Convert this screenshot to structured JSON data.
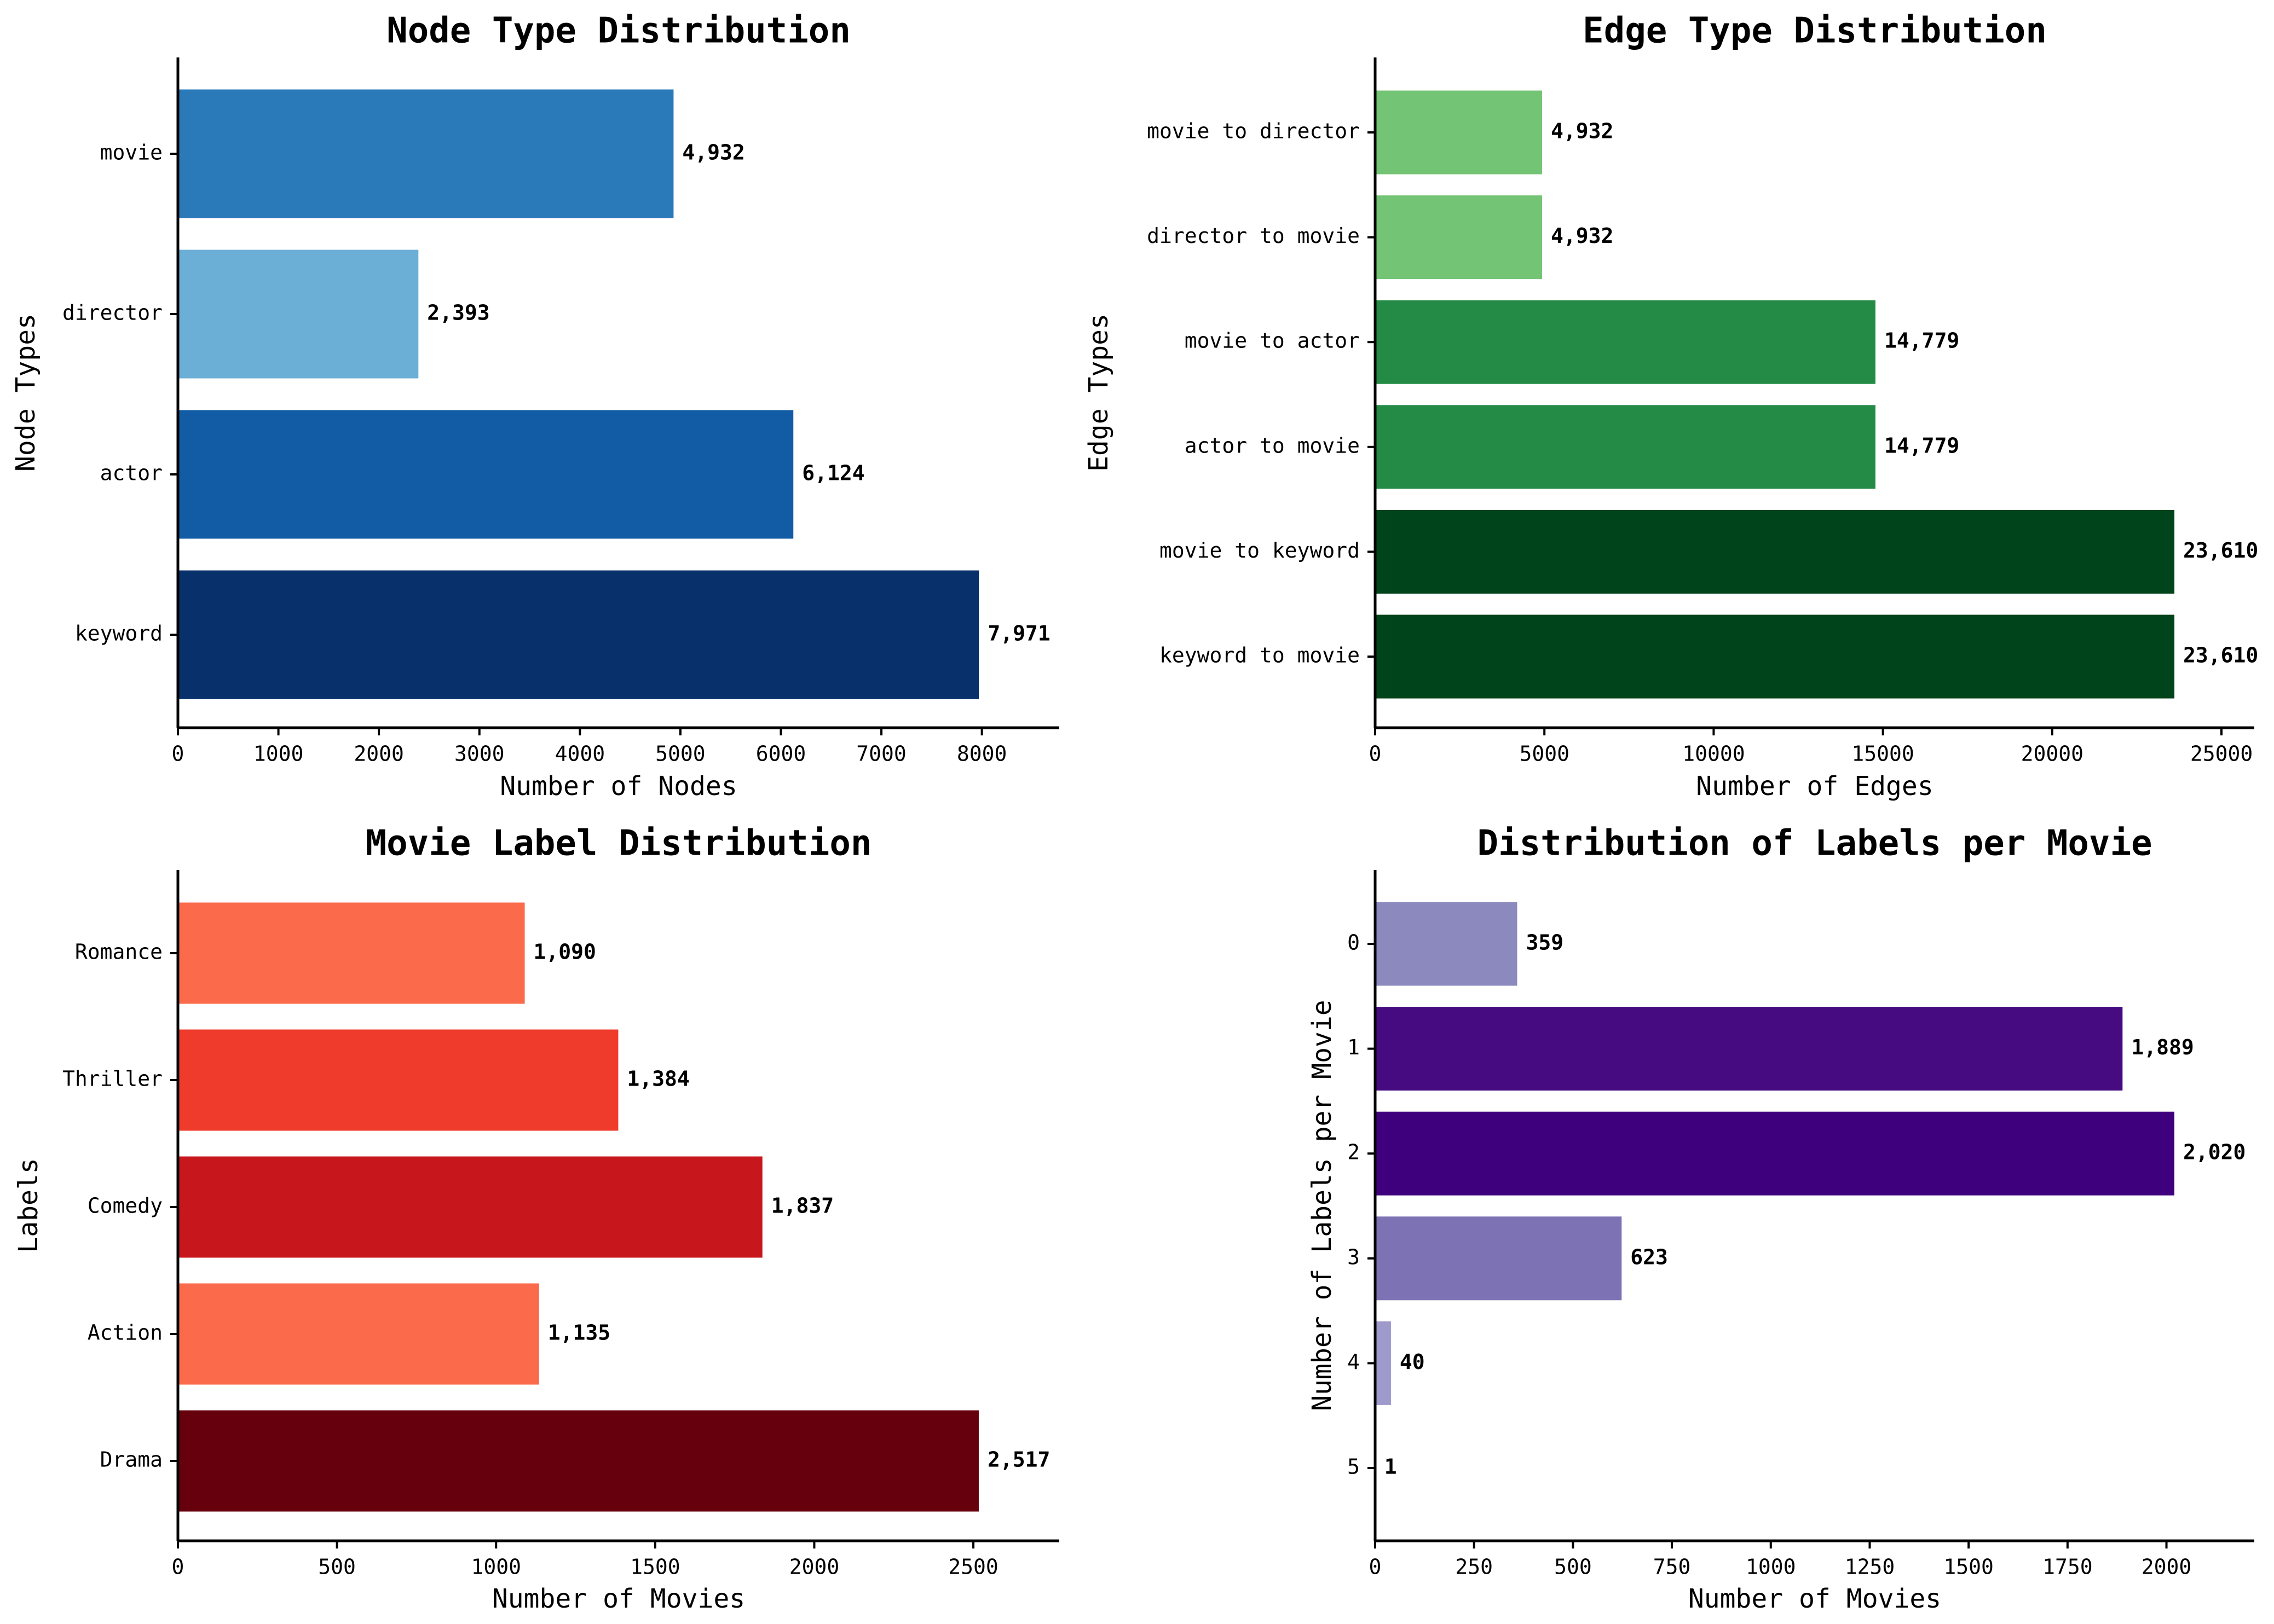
{
  "chart_data": [
    {
      "type": "bar",
      "orientation": "horizontal",
      "title": "Node Type Distribution",
      "xlabel": "Number of Nodes",
      "ylabel": "Node Types",
      "categories": [
        "movie",
        "director",
        "actor",
        "keyword"
      ],
      "values": [
        4932,
        2393,
        6124,
        7971
      ],
      "value_labels": [
        "4,932",
        "2,393",
        "6,124",
        "7,971"
      ],
      "colors": [
        "#2a7ab9",
        "#6baed6",
        "#115ca5",
        "#08306b"
      ],
      "xlim": [
        0,
        8770
      ],
      "xticks": [
        0,
        1000,
        2000,
        3000,
        4000,
        5000,
        6000,
        7000,
        8000
      ],
      "xtick_labels": [
        "0",
        "1000",
        "2000",
        "3000",
        "4000",
        "5000",
        "6000",
        "7000",
        "8000"
      ],
      "grid": false
    },
    {
      "type": "bar",
      "orientation": "horizontal",
      "title": "Edge Type Distribution",
      "xlabel": "Number of Edges",
      "ylabel": "Edge Types",
      "categories": [
        "movie to director",
        "director to movie",
        "movie to actor",
        "actor to movie",
        "movie to keyword",
        "keyword to movie"
      ],
      "values": [
        4932,
        4932,
        14779,
        14779,
        23610,
        23610
      ],
      "value_labels": [
        "4,932",
        "4,932",
        "14,779",
        "14,779",
        "23,610",
        "23,610"
      ],
      "colors": [
        "#74c476",
        "#74c476",
        "#238b45",
        "#238b45",
        "#00441b",
        "#00441b"
      ],
      "xlim": [
        0,
        25970
      ],
      "xticks": [
        0,
        5000,
        10000,
        15000,
        20000,
        25000
      ],
      "xtick_labels": [
        "0",
        "5000",
        "10000",
        "15000",
        "20000",
        "25000"
      ],
      "grid": false
    },
    {
      "type": "bar",
      "orientation": "horizontal",
      "title": "Movie Label Distribution",
      "xlabel": "Number of Movies",
      "ylabel": "Labels",
      "categories": [
        "Romance",
        "Thriller",
        "Comedy",
        "Action",
        "Drama"
      ],
      "values": [
        1090,
        1384,
        1837,
        1135,
        2517
      ],
      "value_labels": [
        "1,090",
        "1,384",
        "1,837",
        "1,135",
        "2,517"
      ],
      "colors": [
        "#fb6a4a",
        "#ef3b2c",
        "#c8171c",
        "#fb6a4a",
        "#67000d"
      ],
      "xlim": [
        0,
        2770
      ],
      "xticks": [
        0,
        500,
        1000,
        1500,
        2000,
        2500
      ],
      "xtick_labels": [
        "0",
        "500",
        "1000",
        "1500",
        "2000",
        "2500"
      ],
      "grid": false
    },
    {
      "type": "bar",
      "orientation": "horizontal",
      "title": "Distribution of Labels per Movie",
      "xlabel": "Number of Movies",
      "ylabel": "Number of Labels per Movie",
      "categories": [
        "0",
        "1",
        "2",
        "3",
        "4",
        "5"
      ],
      "values": [
        359,
        1889,
        2020,
        623,
        40,
        1
      ],
      "value_labels": [
        "359",
        "1,889",
        "2,020",
        "623",
        "40",
        "1"
      ],
      "colors": [
        "#8c89bf",
        "#460a81",
        "#3f007d",
        "#7d73b4",
        "#9e9acb",
        "#fcfbfd"
      ],
      "xlim": [
        0,
        2222
      ],
      "xticks": [
        0,
        250,
        500,
        750,
        1000,
        1250,
        1500,
        1750,
        2000
      ],
      "xtick_labels": [
        "0",
        "250",
        "500",
        "750",
        "1000",
        "1250",
        "1500",
        "1750",
        "2000"
      ],
      "grid": false
    }
  ]
}
